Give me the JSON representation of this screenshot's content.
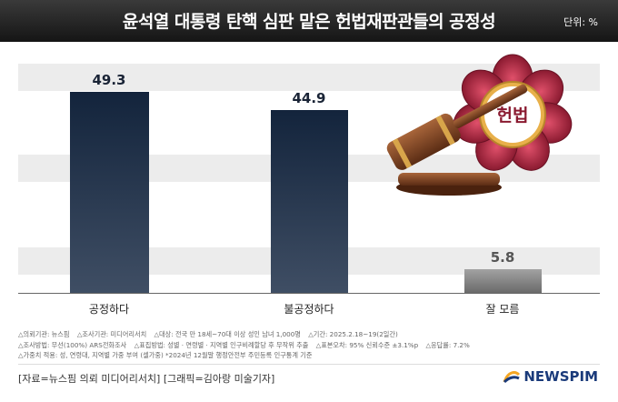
{
  "header": {
    "title": "윤석열 대통령 탄핵 심판 맡은 헌법재판관들의 공정성",
    "unit": "단위: %"
  },
  "chart_data": {
    "type": "bar",
    "categories": [
      "공정하다",
      "불공정하다",
      "잘 모름"
    ],
    "values": [
      49.3,
      44.9,
      5.8
    ],
    "value_labels": [
      "49.3",
      "44.9",
      "5.8"
    ],
    "ylim": [
      0,
      55
    ],
    "grid": "alternating bands",
    "colors": {
      "primary": "#1b2c44",
      "other": "#8a8a8a"
    }
  },
  "illustration": {
    "emblem_text": "헌법",
    "emblem_icon": "court-emblem-with-gavel-icon"
  },
  "notes": [
    "△의뢰기관: 뉴스핌",
    "△조사기관: 미디어리서치",
    "△대상: 전국 만 18세~70대 이상 성인 남녀 1,000명",
    "△기간: 2025.2.18~19(2일간)",
    "△조사방법: 무선(100%) ARS전화조사",
    "△표집방법: 성별 · 연령별 · 지역별 인구비례할당 후 무작위 추출",
    "△표본오차: 95% 신뢰수준 ±3.1%p",
    "△응답률: 7.2%",
    "△가중치 적용: 성, 연령대, 지역별 가중 부여 (셀가중) *2024년 12월말 행정안전부 주민등록 인구통계 기준"
  ],
  "source": "[자료=뉴스핌 의뢰 미디어리서치] [그래픽=김아랑 미술기자]",
  "logo": {
    "text": "NEWSPIM",
    "icon": "newspim-logo-icon"
  }
}
